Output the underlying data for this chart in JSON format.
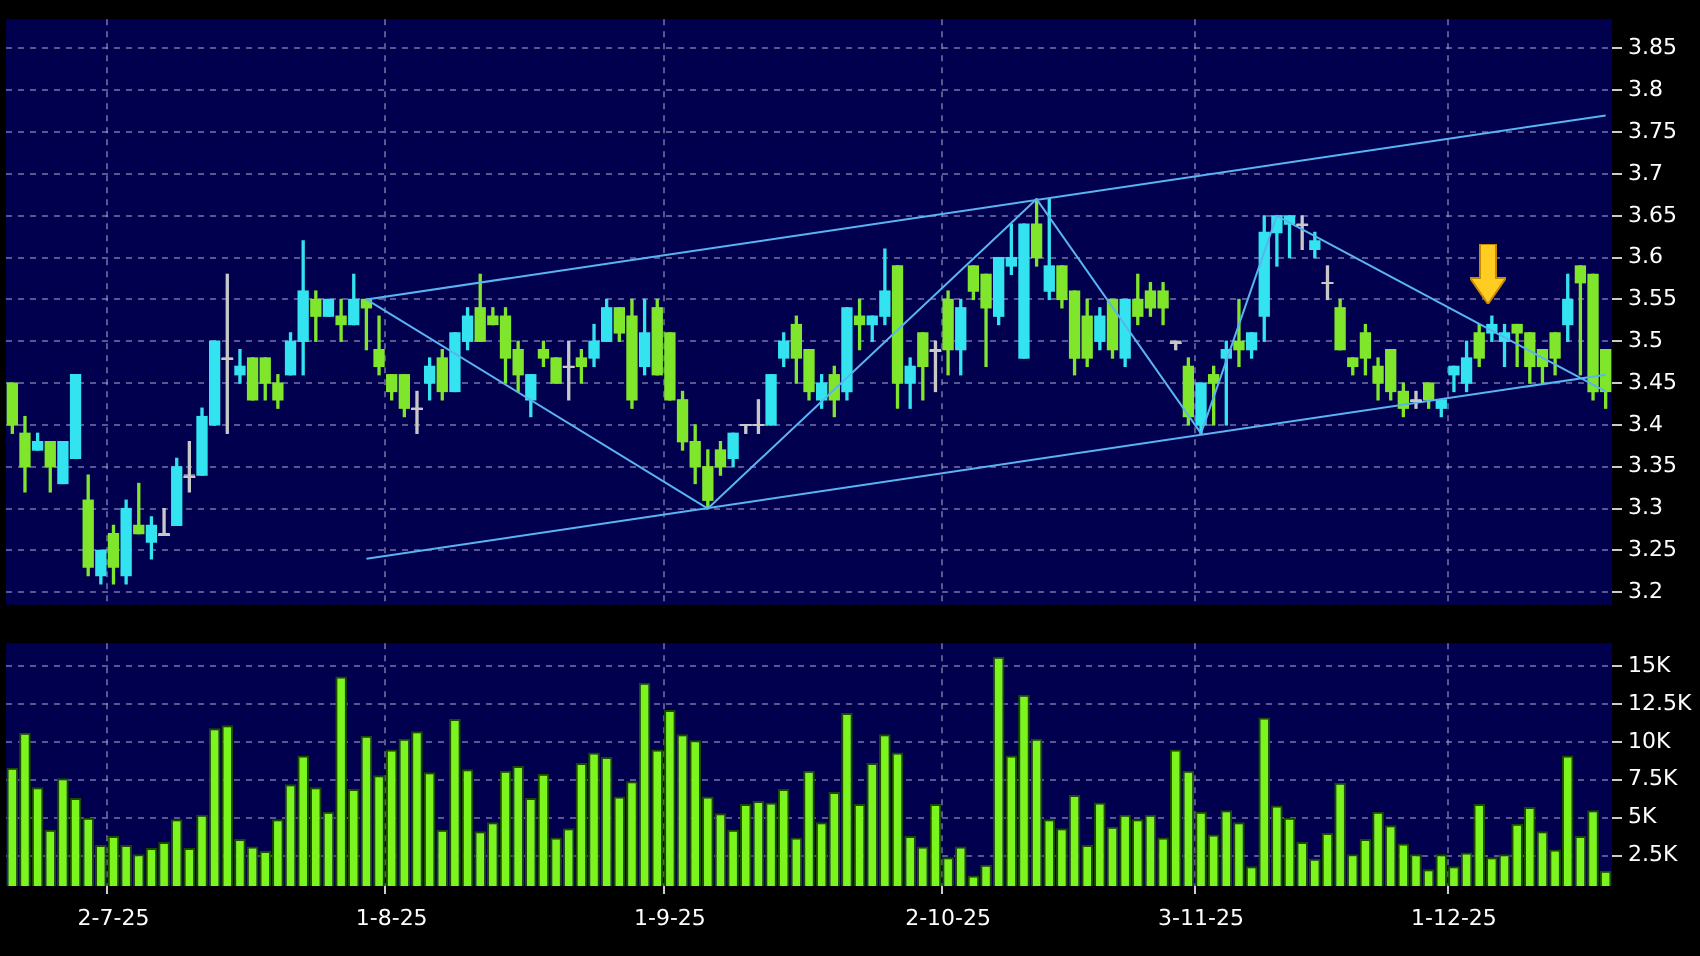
{
  "chart_data": [
    {
      "type": "candlestick",
      "categories": [
        null,
        null,
        null,
        null,
        null,
        null,
        null,
        null,
        null,
        null,
        null,
        null,
        null,
        null,
        null,
        null,
        null,
        null,
        null,
        null,
        null,
        null,
        null,
        null,
        null,
        null,
        null,
        null,
        null,
        null,
        null,
        null,
        null,
        null,
        null,
        null,
        null,
        null,
        null,
        null,
        null,
        null,
        null,
        null,
        null,
        null,
        null,
        null,
        null,
        null,
        null,
        null,
        null,
        null,
        null,
        null,
        null,
        null,
        null,
        null,
        null,
        null,
        null,
        null,
        null,
        null,
        null,
        null,
        null,
        null,
        null,
        null,
        null,
        null,
        null,
        null,
        null,
        null,
        null,
        null,
        null,
        null,
        null,
        null,
        null,
        null,
        null,
        null,
        null,
        null,
        null,
        null,
        null,
        null,
        null,
        null,
        null,
        null,
        null,
        null,
        null,
        null,
        null,
        null,
        null,
        null,
        null,
        null,
        null,
        null,
        null,
        null,
        null,
        null,
        null,
        null,
        null,
        null,
        null,
        null,
        null,
        null,
        null,
        null,
        null,
        null,
        null
      ],
      "ohlc": [
        [
          3.45,
          3.45,
          3.39,
          3.4
        ],
        [
          3.39,
          3.41,
          3.32,
          3.35
        ],
        [
          3.37,
          3.39,
          3.37,
          3.38
        ],
        [
          3.38,
          3.38,
          3.32,
          3.35
        ],
        [
          3.33,
          3.38,
          3.33,
          3.38
        ],
        [
          3.36,
          3.46,
          3.36,
          3.46
        ],
        [
          3.31,
          3.34,
          3.22,
          3.23
        ],
        [
          3.22,
          3.25,
          3.21,
          3.25
        ],
        [
          3.27,
          3.28,
          3.21,
          3.23
        ],
        [
          3.22,
          3.31,
          3.21,
          3.3
        ],
        [
          3.28,
          3.33,
          3.27,
          3.27
        ],
        [
          3.26,
          3.29,
          3.24,
          3.28
        ],
        [
          3.27,
          3.3,
          3.27,
          3.27
        ],
        [
          3.28,
          3.36,
          3.28,
          3.35
        ],
        [
          3.34,
          3.38,
          3.32,
          3.34
        ],
        [
          3.34,
          3.42,
          3.34,
          3.41
        ],
        [
          3.4,
          3.5,
          3.4,
          3.5
        ],
        [
          3.48,
          3.58,
          3.39,
          3.48
        ],
        [
          3.46,
          3.49,
          3.45,
          3.47
        ],
        [
          3.48,
          3.48,
          3.43,
          3.43
        ],
        [
          3.48,
          3.48,
          3.43,
          3.45
        ],
        [
          3.45,
          3.46,
          3.42,
          3.43
        ],
        [
          3.46,
          3.51,
          3.46,
          3.5
        ],
        [
          3.5,
          3.62,
          3.46,
          3.56
        ],
        [
          3.55,
          3.56,
          3.5,
          3.53
        ],
        [
          3.53,
          3.55,
          3.53,
          3.55
        ],
        [
          3.53,
          3.55,
          3.5,
          3.52
        ],
        [
          3.52,
          3.58,
          3.52,
          3.55
        ],
        [
          3.55,
          3.55,
          3.49,
          3.54
        ],
        [
          3.49,
          3.53,
          3.46,
          3.47
        ],
        [
          3.46,
          3.46,
          3.43,
          3.44
        ],
        [
          3.46,
          3.46,
          3.41,
          3.42
        ],
        [
          3.42,
          3.44,
          3.39,
          3.42
        ],
        [
          3.45,
          3.48,
          3.43,
          3.47
        ],
        [
          3.48,
          3.49,
          3.43,
          3.44
        ],
        [
          3.44,
          3.51,
          3.44,
          3.51
        ],
        [
          3.5,
          3.54,
          3.49,
          3.53
        ],
        [
          3.54,
          3.58,
          3.5,
          3.5
        ],
        [
          3.53,
          3.54,
          3.52,
          3.52
        ],
        [
          3.53,
          3.54,
          3.45,
          3.48
        ],
        [
          3.49,
          3.5,
          3.44,
          3.46
        ],
        [
          3.43,
          3.46,
          3.41,
          3.46
        ],
        [
          3.49,
          3.5,
          3.47,
          3.48
        ],
        [
          3.48,
          3.48,
          3.45,
          3.45
        ],
        [
          3.47,
          3.5,
          3.43,
          3.47
        ],
        [
          3.48,
          3.49,
          3.45,
          3.47
        ],
        [
          3.48,
          3.52,
          3.47,
          3.5
        ],
        [
          3.5,
          3.55,
          3.5,
          3.54
        ],
        [
          3.54,
          3.54,
          3.5,
          3.51
        ],
        [
          3.53,
          3.55,
          3.42,
          3.43
        ],
        [
          3.47,
          3.55,
          3.46,
          3.51
        ],
        [
          3.54,
          3.55,
          3.46,
          3.46
        ],
        [
          3.51,
          3.51,
          3.43,
          3.43
        ],
        [
          3.43,
          3.44,
          3.37,
          3.38
        ],
        [
          3.38,
          3.4,
          3.33,
          3.35
        ],
        [
          3.35,
          3.37,
          3.3,
          3.31
        ],
        [
          3.37,
          3.38,
          3.34,
          3.35
        ],
        [
          3.36,
          3.39,
          3.35,
          3.39
        ],
        [
          3.4,
          3.4,
          3.39,
          3.4
        ],
        [
          3.4,
          3.43,
          3.39,
          3.4
        ],
        [
          3.4,
          3.46,
          3.4,
          3.46
        ],
        [
          3.48,
          3.51,
          3.47,
          3.5
        ],
        [
          3.52,
          3.53,
          3.45,
          3.48
        ],
        [
          3.49,
          3.49,
          3.43,
          3.44
        ],
        [
          3.43,
          3.46,
          3.42,
          3.45
        ],
        [
          3.46,
          3.47,
          3.41,
          3.43
        ],
        [
          3.44,
          3.54,
          3.43,
          3.54
        ],
        [
          3.53,
          3.55,
          3.49,
          3.52
        ],
        [
          3.52,
          3.53,
          3.5,
          3.53
        ],
        [
          3.53,
          3.61,
          3.52,
          3.56
        ],
        [
          3.59,
          3.59,
          3.42,
          3.45
        ],
        [
          3.45,
          3.48,
          3.42,
          3.47
        ],
        [
          3.51,
          3.51,
          3.43,
          3.47
        ],
        [
          3.49,
          3.5,
          3.44,
          3.49
        ],
        [
          3.55,
          3.56,
          3.46,
          3.49
        ],
        [
          3.49,
          3.55,
          3.46,
          3.54
        ],
        [
          3.59,
          3.59,
          3.55,
          3.56
        ],
        [
          3.58,
          3.58,
          3.47,
          3.54
        ],
        [
          3.53,
          3.6,
          3.52,
          3.6
        ],
        [
          3.59,
          3.64,
          3.58,
          3.6
        ],
        [
          3.48,
          3.64,
          3.48,
          3.64
        ],
        [
          3.64,
          3.67,
          3.59,
          3.6
        ],
        [
          3.56,
          3.67,
          3.55,
          3.59
        ],
        [
          3.59,
          3.59,
          3.54,
          3.55
        ],
        [
          3.56,
          3.56,
          3.46,
          3.48
        ],
        [
          3.53,
          3.55,
          3.47,
          3.48
        ],
        [
          3.5,
          3.54,
          3.49,
          3.53
        ],
        [
          3.55,
          3.55,
          3.48,
          3.49
        ],
        [
          3.48,
          3.55,
          3.47,
          3.55
        ],
        [
          3.55,
          3.58,
          3.52,
          3.53
        ],
        [
          3.56,
          3.57,
          3.53,
          3.54
        ],
        [
          3.56,
          3.57,
          3.52,
          3.54
        ],
        [
          3.5,
          3.5,
          3.49,
          3.5
        ],
        [
          3.47,
          3.48,
          3.4,
          3.41
        ],
        [
          3.4,
          3.45,
          3.39,
          3.45
        ],
        [
          3.46,
          3.47,
          3.4,
          3.45
        ],
        [
          3.48,
          3.5,
          3.4,
          3.49
        ],
        [
          3.5,
          3.55,
          3.47,
          3.49
        ],
        [
          3.49,
          3.51,
          3.48,
          3.51
        ],
        [
          3.53,
          3.65,
          3.5,
          3.63
        ],
        [
          3.63,
          3.65,
          3.59,
          3.65
        ],
        [
          3.64,
          3.65,
          3.6,
          3.65
        ],
        [
          3.64,
          3.65,
          3.61,
          3.64
        ],
        [
          3.61,
          3.63,
          3.6,
          3.62
        ],
        [
          3.57,
          3.59,
          3.55,
          3.57
        ],
        [
          3.54,
          3.55,
          3.49,
          3.49
        ],
        [
          3.48,
          3.48,
          3.46,
          3.47
        ],
        [
          3.51,
          3.52,
          3.46,
          3.48
        ],
        [
          3.47,
          3.48,
          3.43,
          3.45
        ],
        [
          3.49,
          3.49,
          3.43,
          3.44
        ],
        [
          3.44,
          3.45,
          3.41,
          3.42
        ],
        [
          3.43,
          3.44,
          3.42,
          3.43
        ],
        [
          3.45,
          3.45,
          3.42,
          3.43
        ],
        [
          3.42,
          3.43,
          3.41,
          3.43
        ],
        [
          3.46,
          3.47,
          3.44,
          3.47
        ],
        [
          3.45,
          3.5,
          3.44,
          3.48
        ],
        [
          3.51,
          3.52,
          3.47,
          3.48
        ],
        [
          3.51,
          3.53,
          3.5,
          3.52
        ],
        [
          3.5,
          3.52,
          3.47,
          3.51
        ],
        [
          3.52,
          3.52,
          3.47,
          3.51
        ],
        [
          3.51,
          3.51,
          3.45,
          3.47
        ],
        [
          3.49,
          3.49,
          3.45,
          3.47
        ],
        [
          3.51,
          3.51,
          3.46,
          3.48
        ],
        [
          3.52,
          3.58,
          3.5,
          3.55
        ],
        [
          3.59,
          3.59,
          3.46,
          3.57
        ],
        [
          3.58,
          3.58,
          3.43,
          3.44
        ],
        [
          3.49,
          3.49,
          3.42,
          3.44
        ]
      ],
      "colors": [
        "#80e62c",
        "#80e62c",
        "#33e3f0",
        "#80e62c",
        "#33e3f0",
        "#33e3f0",
        "#80e62c",
        "#33e3f0",
        "#80e62c",
        "#33e3f0",
        "#80e62c",
        "#33e3f0",
        "#c8c8c8",
        "#33e3f0",
        "#c8c8c8",
        "#33e3f0",
        "#33e3f0",
        "#c8c8c8",
        "#33e3f0",
        "#80e62c",
        "#80e62c",
        "#80e62c",
        "#33e3f0",
        "#33e3f0",
        "#80e62c",
        "#33e3f0",
        "#80e62c",
        "#33e3f0",
        "#80e62c",
        "#80e62c",
        "#80e62c",
        "#80e62c",
        "#c8c8c8",
        "#33e3f0",
        "#80e62c",
        "#33e3f0",
        "#33e3f0",
        "#80e62c",
        "#80e62c",
        "#80e62c",
        "#80e62c",
        "#33e3f0",
        "#80e62c",
        "#80e62c",
        "#c8c8c8",
        "#80e62c",
        "#33e3f0",
        "#33e3f0",
        "#80e62c",
        "#80e62c",
        "#33e3f0",
        "#80e62c",
        "#80e62c",
        "#80e62c",
        "#80e62c",
        "#80e62c",
        "#80e62c",
        "#33e3f0",
        "#c8c8c8",
        "#c8c8c8",
        "#33e3f0",
        "#33e3f0",
        "#80e62c",
        "#80e62c",
        "#33e3f0",
        "#80e62c",
        "#33e3f0",
        "#80e62c",
        "#33e3f0",
        "#33e3f0",
        "#80e62c",
        "#33e3f0",
        "#80e62c",
        "#c8c8c8",
        "#80e62c",
        "#33e3f0",
        "#80e62c",
        "#80e62c",
        "#33e3f0",
        "#33e3f0",
        "#33e3f0",
        "#80e62c",
        "#33e3f0",
        "#80e62c",
        "#80e62c",
        "#80e62c",
        "#33e3f0",
        "#80e62c",
        "#33e3f0",
        "#80e62c",
        "#80e62c",
        "#80e62c",
        "#c8c8c8",
        "#80e62c",
        "#33e3f0",
        "#80e62c",
        "#33e3f0",
        "#80e62c",
        "#33e3f0",
        "#33e3f0",
        "#33e3f0",
        "#33e3f0",
        "#c8c8c8",
        "#33e3f0",
        "#c8c8c8",
        "#80e62c",
        "#80e62c",
        "#80e62c",
        "#80e62c",
        "#80e62c",
        "#80e62c",
        "#c8c8c8",
        "#80e62c",
        "#33e3f0",
        "#33e3f0",
        "#33e3f0",
        "#80e62c",
        "#33e3f0",
        "#33e3f0",
        "#80e62c",
        "#80e62c",
        "#80e62c",
        "#80e62c",
        "#33e3f0",
        "#80e62c",
        "#80e62c",
        "#80e62c"
      ],
      "series": [
        {
          "type": "line",
          "color": "#5ab4f0",
          "values": [
            null,
            null,
            null,
            null,
            null,
            null,
            null,
            null,
            null,
            null,
            null,
            null,
            null,
            null,
            null,
            null,
            null,
            null,
            null,
            null,
            null,
            null,
            null,
            null,
            null,
            null,
            null,
            null,
            3.55,
            null,
            null,
            null,
            null,
            null,
            null,
            null,
            null,
            null,
            null,
            null,
            null,
            null,
            null,
            null,
            null,
            null,
            null,
            null,
            null,
            null,
            null,
            null,
            null,
            null,
            null,
            null,
            null,
            null,
            null,
            null,
            null,
            null,
            null,
            null,
            null,
            null,
            null,
            null,
            null,
            null,
            null,
            null,
            null,
            null,
            null,
            null,
            null,
            null,
            null,
            null,
            null,
            null,
            null,
            null,
            null,
            null,
            null,
            null,
            null,
            null,
            null,
            null,
            null,
            null,
            null,
            null,
            null,
            null,
            null,
            null,
            null,
            null,
            null,
            null,
            null,
            null,
            null,
            null,
            null,
            null,
            null,
            null,
            null,
            null,
            null,
            null,
            null,
            null,
            null,
            null,
            null,
            null,
            null,
            null,
            null,
            null,
            3.77
          ]
        },
        {
          "type": "line",
          "color": "#5ab4f0",
          "values": [
            null,
            null,
            null,
            null,
            null,
            null,
            null,
            null,
            null,
            null,
            null,
            null,
            null,
            null,
            null,
            null,
            null,
            null,
            null,
            null,
            null,
            null,
            null,
            null,
            null,
            null,
            null,
            null,
            3.24,
            null,
            null,
            null,
            null,
            null,
            null,
            null,
            null,
            null,
            null,
            null,
            null,
            null,
            null,
            null,
            null,
            null,
            null,
            null,
            null,
            null,
            null,
            null,
            null,
            null,
            null,
            null,
            null,
            null,
            null,
            null,
            null,
            null,
            null,
            null,
            null,
            null,
            null,
            null,
            null,
            null,
            null,
            null,
            null,
            null,
            null,
            null,
            null,
            null,
            null,
            null,
            null,
            null,
            null,
            null,
            null,
            null,
            null,
            null,
            null,
            null,
            null,
            null,
            null,
            null,
            null,
            null,
            null,
            null,
            null,
            null,
            null,
            null,
            null,
            null,
            null,
            null,
            null,
            null,
            null,
            null,
            null,
            null,
            null,
            null,
            null,
            null,
            null,
            null,
            null,
            null,
            null,
            null,
            null,
            null,
            null,
            null,
            3.46
          ]
        },
        {
          "type": "line",
          "color": "#5ab4f0",
          "values": [
            null,
            null,
            null,
            null,
            null,
            null,
            null,
            null,
            null,
            null,
            null,
            null,
            null,
            null,
            null,
            null,
            null,
            null,
            null,
            null,
            null,
            null,
            null,
            null,
            null,
            null,
            null,
            null,
            3.55,
            null,
            null,
            null,
            null,
            null,
            null,
            null,
            null,
            null,
            null,
            null,
            null,
            null,
            null,
            null,
            null,
            null,
            null,
            null,
            null,
            null,
            null,
            null,
            null,
            null,
            null,
            3.3,
            null,
            null,
            null,
            null,
            null,
            null,
            null,
            null,
            null,
            null,
            null,
            null,
            null,
            null,
            null,
            null,
            null,
            null,
            null,
            null,
            null,
            null,
            null,
            null,
            null,
            3.67,
            null,
            null,
            null,
            null,
            null,
            null,
            null,
            null,
            null,
            null,
            null,
            null,
            3.39,
            null,
            null,
            null,
            null,
            null,
            3.65,
            null,
            null,
            null,
            null,
            null,
            null,
            null,
            null,
            null,
            null,
            null,
            null,
            null,
            null,
            null,
            null,
            null,
            null,
            null,
            null,
            null,
            null,
            null,
            null,
            null,
            3.44
          ]
        }
      ],
      "ylim": [
        3.185,
        3.885
      ],
      "yticks": [
        3.2,
        3.25,
        3.3,
        3.35,
        3.4,
        3.45,
        3.5,
        3.55,
        3.6,
        3.65,
        3.7,
        3.75,
        3.8,
        3.85
      ],
      "grid": true,
      "tick_labels": "y"
    },
    {
      "type": "bar",
      "categories": [
        null,
        null,
        null,
        null,
        null,
        null,
        null,
        null,
        "2-7-25",
        null,
        null,
        null,
        null,
        null,
        null,
        null,
        null,
        null,
        null,
        null,
        null,
        null,
        null,
        null,
        null,
        null,
        null,
        null,
        null,
        null,
        "1-8-25",
        null,
        null,
        null,
        null,
        null,
        null,
        null,
        null,
        null,
        null,
        null,
        null,
        null,
        null,
        null,
        null,
        null,
        null,
        null,
        null,
        null,
        "1-9-25",
        null,
        null,
        null,
        null,
        null,
        null,
        null,
        null,
        null,
        null,
        null,
        null,
        null,
        null,
        null,
        null,
        null,
        null,
        null,
        null,
        null,
        "2-10-25",
        null,
        null,
        null,
        null,
        null,
        null,
        null,
        null,
        null,
        null,
        null,
        null,
        null,
        null,
        null,
        null,
        null,
        null,
        null,
        "3-11-25",
        null,
        null,
        null,
        null,
        null,
        null,
        null,
        null,
        null,
        null,
        null,
        null,
        null,
        null,
        null,
        null,
        null,
        null,
        null,
        "1-12-25",
        null,
        null,
        null,
        null,
        null,
        null,
        null,
        null,
        null,
        null,
        null,
        null
      ],
      "values": [
        8.3,
        10.6,
        7.0,
        4.2,
        7.6,
        6.3,
        5.0,
        3.2,
        3.8,
        3.2,
        2.6,
        3.0,
        3.4,
        4.9,
        3.0,
        5.2,
        10.9,
        11.1,
        3.6,
        3.1,
        2.8,
        4.9,
        7.2,
        9.1,
        7.0,
        5.4,
        14.3,
        6.9,
        10.4,
        7.8,
        9.5,
        10.2,
        10.7,
        8.0,
        4.2,
        11.5,
        8.2,
        4.1,
        4.7,
        8.1,
        8.4,
        6.3,
        7.9,
        3.7,
        4.3,
        8.6,
        9.3,
        9.0,
        6.4,
        7.4,
        13.9,
        9.5,
        12.1,
        10.5,
        10.1,
        6.4,
        5.3,
        4.2,
        5.9,
        6.1,
        6.0,
        6.9,
        3.7,
        8.1,
        4.7,
        6.7,
        11.9,
        5.9,
        8.6,
        10.5,
        9.3,
        3.8,
        3.1,
        5.9,
        2.4,
        3.1,
        1.2,
        1.9,
        15.6,
        9.1,
        13.1,
        10.2,
        4.9,
        4.3,
        6.5,
        3.2,
        6.0,
        4.4,
        5.2,
        4.9,
        5.2,
        3.7,
        9.5,
        8.1,
        5.4,
        3.9,
        5.5,
        4.7,
        1.8,
        11.6,
        5.8,
        5.0,
        3.4,
        2.3,
        4.0,
        7.3,
        2.6,
        3.6,
        5.4,
        4.5,
        3.3,
        2.6,
        1.6,
        2.6,
        1.8,
        2.7,
        5.9,
        2.4,
        2.6,
        4.6,
        5.7,
        4.1,
        2.9,
        9.1,
        3.8,
        5.5,
        1.5
      ],
      "color": "#7cf51e",
      "ylim": [
        0.5,
        16.5
      ],
      "yticks": [
        {
          "value": 2.5,
          "label": "2.5K"
        },
        {
          "value": 5,
          "label": "5K"
        },
        {
          "value": 7.5,
          "label": "7.5K"
        },
        {
          "value": 10,
          "label": "10K"
        },
        {
          "value": 12.5,
          "label": "12.5K"
        },
        {
          "value": 15,
          "label": "15K"
        }
      ],
      "grid": true
    }
  ]
}
